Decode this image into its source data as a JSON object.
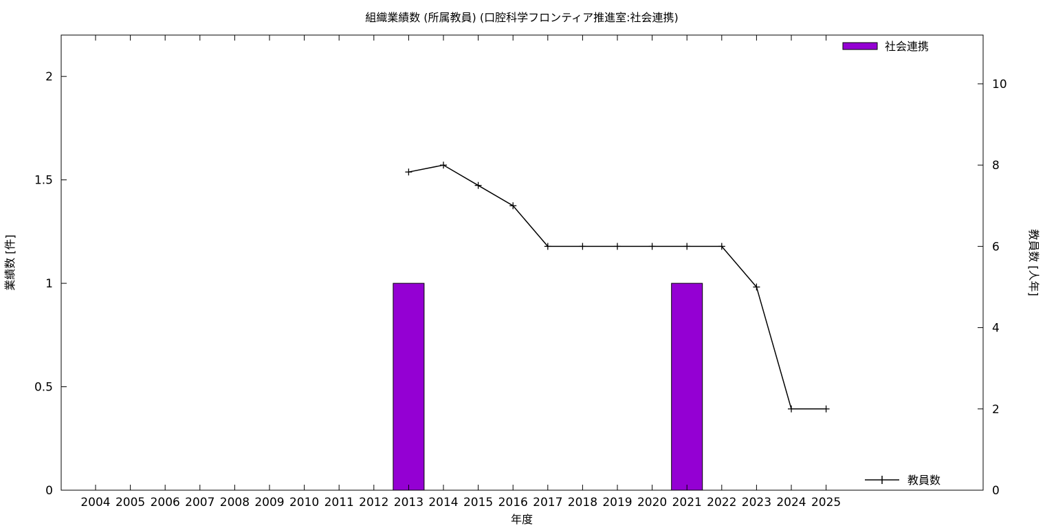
{
  "chart_data": {
    "type": "bar",
    "title": "組織業績数 (所属教員) (口腔科学フロンティア推進室:社会連携)",
    "xlabel": "年度",
    "ylabel_left": "業績数 [件]",
    "ylabel_right": "教員数 [人年]",
    "categories": [
      "2004",
      "2005",
      "2006",
      "2007",
      "2008",
      "2009",
      "2010",
      "2011",
      "2012",
      "2013",
      "2014",
      "2015",
      "2016",
      "2017",
      "2018",
      "2019",
      "2020",
      "2021",
      "2022",
      "2023",
      "2024",
      "2025"
    ],
    "left_axis": {
      "ylim": [
        0,
        2.2
      ],
      "ticks": [
        0,
        0.5,
        1,
        1.5,
        2
      ],
      "tick_labels": [
        "0",
        "0.5",
        "1",
        "1.5",
        "2"
      ]
    },
    "right_axis": {
      "ylim": [
        0,
        11.2
      ],
      "ticks": [
        0,
        2,
        4,
        6,
        8,
        10
      ],
      "tick_labels": [
        "0",
        "2",
        "4",
        "6",
        "8",
        "10"
      ]
    },
    "series": [
      {
        "name": "社会連携",
        "kind": "bar",
        "axis": "left",
        "color": "#9400d3",
        "values": [
          0,
          0,
          0,
          0,
          0,
          0,
          0,
          0,
          0,
          1,
          0,
          0,
          0,
          0,
          0,
          0,
          0,
          1,
          0,
          0,
          0,
          0
        ]
      },
      {
        "name": "教員数",
        "kind": "line",
        "axis": "right",
        "color": "#000000",
        "values": [
          null,
          null,
          null,
          null,
          null,
          null,
          null,
          null,
          null,
          7.83,
          8.0,
          7.5,
          7.0,
          6.0,
          6.0,
          6.0,
          6.0,
          6.0,
          6.0,
          5.0,
          2.0,
          2.0
        ]
      }
    ],
    "legend": {
      "bar_position": "top-right",
      "line_position": "bottom-right"
    },
    "grid": false
  }
}
